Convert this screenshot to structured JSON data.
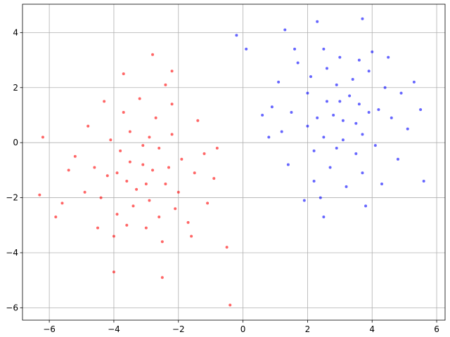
{
  "chart_data": {
    "type": "scatter",
    "xlim": [
      -6.83,
      6.26
    ],
    "ylim": [
      -6.45,
      5.03
    ],
    "xticks": [
      {
        "value": -6,
        "label": "−6"
      },
      {
        "value": -4,
        "label": "−4"
      },
      {
        "value": -2,
        "label": "−2"
      },
      0,
      2,
      4,
      6
    ],
    "yticks": [
      {
        "value": -6,
        "label": "−6"
      },
      {
        "value": -4,
        "label": "−4"
      },
      {
        "value": -2,
        "label": "−2"
      },
      0,
      2,
      4
    ],
    "grid": true,
    "series": [
      {
        "color": "#ff0000",
        "x": [
          -3.1,
          -2.4,
          -3.8,
          -2.9,
          -4.2,
          -1.9,
          -3.5,
          -2.6,
          -3.3,
          -4.6,
          -2.1,
          -3.9,
          -2.7,
          -1.5,
          -4.9,
          -3.6,
          -2.2,
          -3.0,
          -4.1,
          -1.2,
          -2.8,
          -3.4,
          -5.2,
          -2.0,
          -3.7,
          -4.4,
          -1.7,
          -2.5,
          -3.2,
          -0.9,
          -4.8,
          -2.3,
          -3.1,
          -3.9,
          -1.4,
          -5.6,
          -2.6,
          -4.0,
          -3.5,
          -2.9,
          -1.1,
          -4.3,
          -3.0,
          -2.2,
          -5.4,
          -3.6,
          -0.8,
          -2.4,
          -4.5,
          -1.6,
          -6.2,
          -6.3,
          -2.8,
          -2.2,
          -2.5,
          -0.4,
          -4.0,
          -0.5,
          -5.8,
          -3.7
        ],
        "values": [
          -0.8,
          -1.5,
          -0.3,
          -2.1,
          -1.2,
          -0.6,
          0.4,
          -0.2,
          -1.7,
          -0.9,
          -2.4,
          -2.6,
          0.9,
          -1.1,
          -1.8,
          -1.4,
          0.3,
          -3.1,
          0.1,
          -0.4,
          -1.0,
          -2.3,
          -0.5,
          -1.8,
          1.1,
          -2.0,
          -2.9,
          -3.6,
          1.6,
          -1.3,
          0.6,
          -0.9,
          -0.1,
          -1.1,
          0.8,
          -2.2,
          -2.7,
          -3.4,
          -0.7,
          0.2,
          -2.2,
          1.5,
          -1.5,
          1.4,
          -1.0,
          -3.0,
          -0.2,
          2.1,
          -3.1,
          -3.4,
          0.2,
          -1.9,
          3.2,
          2.6,
          -4.9,
          -5.9,
          -4.7,
          -3.8,
          -2.7,
          2.5
        ]
      },
      {
        "color": "#0000ff",
        "x": [
          3.1,
          2.6,
          3.7,
          2.9,
          4.2,
          2.0,
          3.5,
          2.5,
          3.3,
          4.6,
          2.1,
          3.9,
          2.7,
          1.5,
          4.9,
          3.6,
          2.2,
          3.0,
          4.1,
          1.2,
          2.8,
          3.4,
          5.1,
          2.0,
          3.7,
          4.4,
          1.7,
          2.5,
          3.2,
          0.9,
          4.8,
          2.3,
          3.1,
          3.9,
          1.4,
          5.3,
          2.6,
          4.0,
          3.5,
          2.9,
          1.1,
          4.3,
          3.0,
          2.2,
          0.6,
          3.6,
          0.8,
          2.4,
          4.5,
          1.6,
          3.7,
          2.3,
          5.5,
          5.6,
          2.5,
          3.8,
          -0.2,
          0.1,
          1.9,
          1.3
        ],
        "values": [
          0.8,
          1.5,
          0.3,
          2.1,
          1.2,
          0.6,
          -0.4,
          0.2,
          1.7,
          0.9,
          2.4,
          2.6,
          -0.9,
          1.1,
          1.8,
          1.4,
          -0.3,
          3.1,
          -0.1,
          0.4,
          1.0,
          2.3,
          0.5,
          1.8,
          -1.1,
          2.0,
          2.9,
          3.4,
          -1.6,
          1.3,
          -0.6,
          0.9,
          0.1,
          1.1,
          -0.8,
          2.2,
          2.7,
          3.3,
          0.7,
          -0.2,
          2.2,
          -1.5,
          1.5,
          -1.4,
          1.0,
          3.0,
          0.2,
          -2.0,
          3.1,
          3.4,
          4.5,
          4.4,
          1.2,
          -1.4,
          -2.7,
          -2.3,
          3.9,
          3.4,
          -2.1,
          4.1
        ]
      }
    ]
  }
}
